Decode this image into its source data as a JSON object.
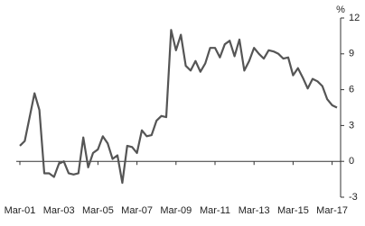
{
  "chart_data": {
    "type": "line",
    "y_unit": "%",
    "categories": [
      "Mar-01",
      null,
      null,
      null,
      null,
      null,
      null,
      null,
      "Mar-03",
      null,
      null,
      null,
      null,
      null,
      null,
      null,
      "Mar-05",
      null,
      null,
      null,
      null,
      null,
      null,
      null,
      "Mar-07",
      null,
      null,
      null,
      null,
      null,
      null,
      null,
      "Mar-09",
      null,
      null,
      null,
      null,
      null,
      null,
      null,
      "Mar-11",
      null,
      null,
      null,
      null,
      null,
      null,
      null,
      "Mar-13",
      null,
      null,
      null,
      null,
      null,
      null,
      null,
      "Mar-15",
      null,
      null,
      null,
      null,
      null,
      null,
      null,
      "Mar-17",
      null
    ],
    "series": [
      {
        "color": "#555555",
        "values": [
          1.3,
          1.7,
          3.7,
          5.7,
          4.3,
          -1.0,
          -1.0,
          -1.3,
          -0.2,
          0.0,
          -1.0,
          -1.1,
          -1.0,
          2.0,
          -0.5,
          0.7,
          1.0,
          2.1,
          1.5,
          0.2,
          0.5,
          -1.8,
          1.3,
          1.2,
          0.7,
          2.6,
          2.1,
          2.2,
          3.4,
          3.8,
          3.7,
          11.0,
          9.3,
          10.6,
          8.0,
          7.6,
          8.4,
          7.5,
          8.2,
          9.5,
          9.5,
          8.7,
          9.8,
          10.1,
          8.8,
          10.2,
          7.6,
          8.4,
          9.5,
          9.0,
          8.6,
          9.3,
          9.2,
          9.0,
          8.6,
          8.7,
          7.2,
          7.8,
          7.0,
          6.1,
          6.9,
          6.7,
          6.3,
          5.2,
          4.7,
          4.5
        ]
      }
    ],
    "ylim": [
      -3,
      12
    ],
    "yticks": [
      -3,
      0,
      3,
      6,
      9,
      12
    ],
    "grid": false
  }
}
